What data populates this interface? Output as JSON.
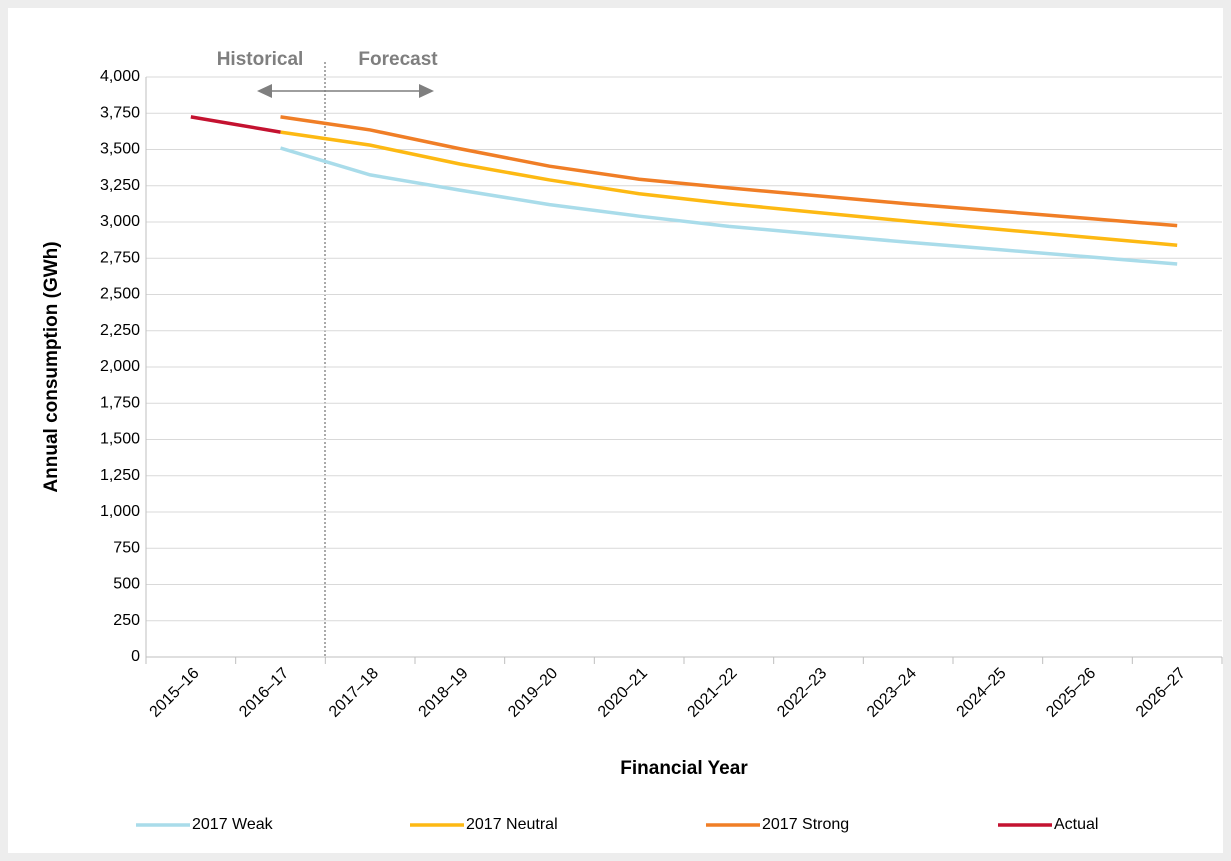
{
  "chart_data": {
    "type": "line",
    "y_axis_label": "Annual consumption (GWh)",
    "x_axis_label": "Financial Year",
    "annotations": [
      "Historical",
      "Forecast"
    ],
    "categories": [
      "2015–16",
      "2016–17",
      "2017–18",
      "2018–19",
      "2019–20",
      "2020–21",
      "2021–22",
      "2022–23",
      "2023–24",
      "2024–25",
      "2025–26",
      "2026–27"
    ],
    "series": [
      {
        "name": "2017 Weak",
        "color": "#a9dcea",
        "values": [
          null,
          3510,
          3325,
          3220,
          3120,
          3040,
          2970,
          2915,
          2860,
          2810,
          2760,
          2710
        ]
      },
      {
        "name": "2017 Neutral",
        "color": "#fdb913",
        "values": [
          null,
          3620,
          3530,
          3400,
          3290,
          3195,
          3125,
          3065,
          3005,
          2950,
          2895,
          2840
        ]
      },
      {
        "name": "2017 Strong",
        "color": "#f07e26",
        "values": [
          null,
          3725,
          3635,
          3505,
          3385,
          3295,
          3235,
          3180,
          3125,
          3075,
          3025,
          2975
        ]
      },
      {
        "name": "Actual",
        "color": "#c41230",
        "values": [
          3725,
          3620,
          null,
          null,
          null,
          null,
          null,
          null,
          null,
          null,
          null,
          null
        ]
      }
    ],
    "ylim": [
      0,
      4000
    ],
    "yticks": [
      0,
      250,
      500,
      750,
      {
        "value": 1000,
        "label": "1,000"
      },
      {
        "value": 1250,
        "label": "1,250"
      },
      {
        "value": 1500,
        "label": "1,500"
      },
      {
        "value": 1750,
        "label": "1,750"
      },
      {
        "value": 2000,
        "label": "2,000"
      },
      {
        "value": 2250,
        "label": "2,250"
      },
      {
        "value": 2500,
        "label": "2,500"
      },
      {
        "value": 2750,
        "label": "2,750"
      },
      {
        "value": 3000,
        "label": "3,000"
      },
      {
        "value": 3250,
        "label": "3,250"
      },
      {
        "value": 3500,
        "label": "3,500"
      },
      {
        "value": 3750,
        "label": "3,750"
      },
      {
        "value": 4000,
        "label": "4,000"
      }
    ],
    "grid": true,
    "legend": "bottom"
  }
}
